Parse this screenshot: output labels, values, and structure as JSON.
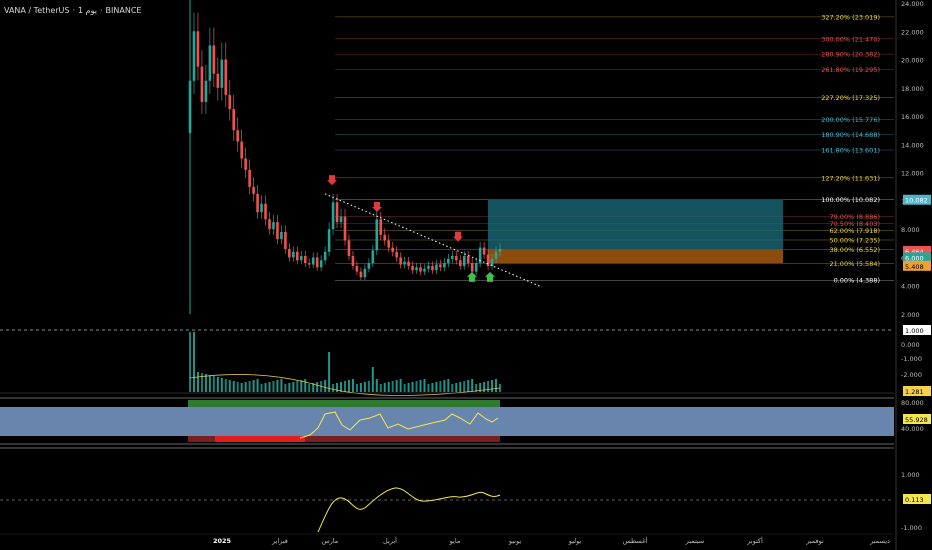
{
  "header": {
    "symbol": "VANA / TetherUS",
    "timeframe": "1 يوم",
    "exchange": "BINANCE",
    "separator": "·"
  },
  "colors": {
    "background": "#000000",
    "candle_up": "#26a69a",
    "candle_down": "#ef5350",
    "fib_yellow": "#f0d54a",
    "fib_red": "#e05555",
    "fib_blue": "#4bb6cc",
    "fib_white": "#ffffff",
    "target_zone": "#1b6f7d",
    "stop_zone": "#a5590f",
    "trendline": "#ffffff",
    "arrow_red": "#e0393e",
    "arrow_green": "#3fbf4c",
    "rsi_line": "#f5e64c",
    "rsi_band": "#7a9ccc",
    "osc_line": "#f5e64c"
  },
  "chart_data": [
    {
      "type": "candlestick",
      "name": "price",
      "ylim": [
        2.0,
        24.0
      ],
      "y_ticks": [
        "24.000",
        "22.000",
        "20.000",
        "18.000",
        "16.000",
        "14.000",
        "12.000",
        "10.000",
        "8.000",
        "6.000",
        "4.000",
        "2.000"
      ],
      "x_ticks": [
        "2025",
        "فبراير",
        "مارس",
        "أبريل",
        "مايو",
        "يونيو",
        "يوليو",
        "أغسطس",
        "سبتمبر",
        "أكتوبر",
        "نوفمبر",
        "ديسمبر"
      ],
      "close_series": [
        18.5,
        22.0,
        19.5,
        17.0,
        18.5,
        21.0,
        19.0,
        18.0,
        20.0,
        17.5,
        16.5,
        15.0,
        14.2,
        13.0,
        12.2,
        11.0,
        10.5,
        9.2,
        9.8,
        8.7,
        8.0,
        8.5,
        7.3,
        7.8,
        6.6,
        6.0,
        6.4,
        5.8,
        6.1,
        5.6,
        5.5,
        6.0,
        5.3,
        5.8,
        6.4,
        8.0,
        9.9,
        8.5,
        8.9,
        7.2,
        6.1,
        5.4,
        5.0,
        4.6,
        5.2,
        5.6,
        6.5,
        8.7,
        7.6,
        7.2,
        6.7,
        6.4,
        6.0,
        5.5,
        5.7,
        5.4,
        5.1,
        5.3,
        5.0,
        5.2,
        5.4,
        5.1,
        5.5,
        5.3,
        5.6,
        5.9,
        6.1,
        5.8,
        5.4,
        6.1,
        5.6,
        5.0,
        5.6,
        6.7,
        6.2,
        5.4,
        5.9,
        6.4,
        6.6
      ],
      "fib_levels": [
        {
          "label": "327.20% (23.019)",
          "value": 23.019,
          "color": "yellow"
        },
        {
          "label": "300.00% (21.470)",
          "value": 21.47,
          "color": "red"
        },
        {
          "label": "280.90% (20.382)",
          "value": 20.382,
          "color": "red"
        },
        {
          "label": "261.80% (19.295)",
          "value": 19.295,
          "color": "red"
        },
        {
          "label": "227.20% (17.325)",
          "value": 17.325,
          "color": "yellow"
        },
        {
          "label": "200.00% (15.776)",
          "value": 15.776,
          "color": "blue"
        },
        {
          "label": "180.90% (14.688)",
          "value": 14.688,
          "color": "blue"
        },
        {
          "label": "161.80% (13.601)",
          "value": 13.601,
          "color": "blue"
        },
        {
          "label": "127.20% (11.631)",
          "value": 11.631,
          "color": "yellow"
        },
        {
          "label": "100.00% (10.082)",
          "value": 10.082,
          "color": "white"
        },
        {
          "label": "79.00% (8.886)",
          "value": 8.886,
          "color": "red"
        },
        {
          "label": "70.50% (8.403)",
          "value": 8.403,
          "color": "red"
        },
        {
          "label": "62.00% (7.918)",
          "value": 7.918,
          "color": "yellow"
        },
        {
          "label": "50.00% (7.235)",
          "value": 7.235,
          "color": "yellow"
        },
        {
          "label": "38.00% (6.552)",
          "value": 6.552,
          "color": "yellow"
        },
        {
          "label": "21.00% (5.584)",
          "value": 5.584,
          "color": "yellow"
        },
        {
          "label": "0.00% (4.388)",
          "value": 4.388,
          "color": "white"
        }
      ],
      "price_tags": [
        {
          "label": "10.082",
          "value": 10.082,
          "bg": "#4bb6cc",
          "fg": "#ffffff"
        },
        {
          "label": "6.464",
          "value": 6.464,
          "bg": "#ef5350",
          "fg": "#ffffff"
        },
        {
          "label": "6.000",
          "value": 6.0,
          "bg": "#26a69a",
          "fg": "#ffffff"
        },
        {
          "label": "5.408",
          "value": 5.408,
          "bg": "#f0a030",
          "fg": "#000000"
        }
      ],
      "position": {
        "target": 10.082,
        "entry": 6.552,
        "stop": 5.584
      }
    },
    {
      "type": "line",
      "name": "volume-pane",
      "ticks": [
        "1.000",
        "0.000",
        "-1.000",
        "-2.000"
      ],
      "tag": "1.281"
    },
    {
      "type": "line",
      "name": "rsi-pane",
      "ticks": [
        "80.000",
        "40.000"
      ],
      "tag": "55.928"
    },
    {
      "type": "line",
      "name": "oscillator-pane",
      "ticks": [
        "1.000",
        "-1.000"
      ],
      "tag": "0.113"
    }
  ]
}
